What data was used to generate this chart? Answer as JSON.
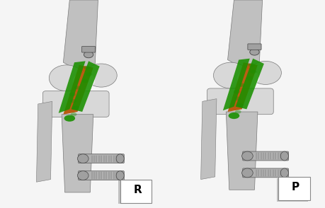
{
  "fig_width": 4.6,
  "fig_height": 2.94,
  "dpi": 100,
  "bg_color": "#f5f5f5",
  "left_label": "R",
  "right_label": "P",
  "label_fontsize": 11,
  "green": "#1a9000",
  "orange": "#b85000",
  "bone_bg": "#e8e8e8",
  "bone_light": "#d8d8d8",
  "bone_mid": "#c0c0c0",
  "bone_dark": "#909090",
  "bone_edge": "#787878",
  "screw_color": "#b0b0b0",
  "hardware_color": "#a0a0a0"
}
